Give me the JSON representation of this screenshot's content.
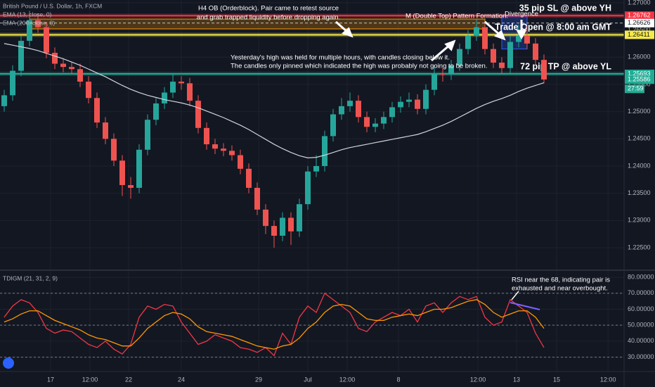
{
  "chart_data": [
    {
      "type": "candlestick",
      "legend": [
        "British Pound / U.S. Dollar, 1h, FXCM",
        "EMA (13, close, 0)",
        "EMA (200, close, 0)"
      ],
      "xlim": [
        -0.5,
        73.5
      ],
      "xticks": [
        {
          "value": 5.5,
          "label": "17"
        },
        {
          "value": 10.17,
          "label": "12:00"
        },
        {
          "value": 14.75,
          "label": "22"
        },
        {
          "value": 21,
          "label": "24"
        },
        {
          "value": 30.17,
          "label": "29"
        },
        {
          "value": 36,
          "label": "Jul"
        },
        {
          "value": 40.67,
          "label": "12:00"
        },
        {
          "value": 46.75,
          "label": "8"
        },
        {
          "value": 56.17,
          "label": "12:00"
        },
        {
          "value": 60.75,
          "label": "13"
        },
        {
          "value": 65.5,
          "label": "15"
        },
        {
          "value": 71.6,
          "label": "12:00"
        }
      ],
      "ylim": [
        1.221,
        1.2705
      ],
      "yticks": [
        {
          "value": 1.225,
          "label": "1.22500"
        },
        {
          "value": 1.23,
          "label": "1.23000"
        },
        {
          "value": 1.235,
          "label": "1.23500"
        },
        {
          "value": 1.24,
          "label": "1.24000"
        },
        {
          "value": 1.245,
          "label": "1.24500"
        },
        {
          "value": 1.25,
          "label": "1.25000"
        },
        {
          "value": 1.255,
          "label": "1.25500"
        },
        {
          "value": 1.26,
          "label": "1.26000"
        },
        {
          "value": 1.265,
          "label": "1.26500"
        },
        {
          "value": 1.27,
          "label": "1.27000"
        }
      ],
      "grid": true,
      "up_color": "#26a69a",
      "down_color": "#ef5350",
      "open": [
        1.251,
        1.253,
        1.2575,
        1.263,
        1.2668,
        1.2655,
        1.2608,
        1.2588,
        1.2582,
        1.2578,
        1.2555,
        1.2525,
        1.248,
        1.245,
        1.241,
        1.2365,
        1.236,
        1.243,
        1.2485,
        1.2515,
        1.2535,
        1.2555,
        1.2552,
        1.252,
        1.247,
        1.244,
        1.2432,
        1.2428,
        1.242,
        1.2395,
        1.236,
        1.232,
        1.229,
        1.2272,
        1.2305,
        1.228,
        1.233,
        1.239,
        1.24,
        1.2455,
        1.2495,
        1.251,
        1.252,
        1.249,
        1.2472,
        1.2478,
        1.249,
        1.2508,
        1.2518,
        1.2522,
        1.2505,
        1.254,
        1.257,
        1.2568,
        1.2585,
        1.2615,
        1.264,
        1.2655,
        1.2615,
        1.259,
        1.258,
        1.2628,
        1.264,
        1.2625,
        1.2595
      ],
      "high": [
        1.254,
        1.2585,
        1.264,
        1.2685,
        1.268,
        1.2665,
        1.2618,
        1.2598,
        1.2592,
        1.2588,
        1.2565,
        1.2535,
        1.249,
        1.246,
        1.242,
        1.238,
        1.244,
        1.2495,
        1.2525,
        1.2545,
        1.257,
        1.2565,
        1.2562,
        1.253,
        1.248,
        1.245,
        1.2442,
        1.2438,
        1.243,
        1.2405,
        1.237,
        1.233,
        1.23,
        1.2315,
        1.2315,
        1.234,
        1.24,
        1.242,
        1.2465,
        1.2505,
        1.2525,
        1.2535,
        1.253,
        1.25,
        1.2488,
        1.25,
        1.2518,
        1.2528,
        1.2535,
        1.2532,
        1.255,
        1.2585,
        1.258,
        1.2595,
        1.2625,
        1.265,
        1.267,
        1.2665,
        1.2625,
        1.26,
        1.264,
        1.266,
        1.2658,
        1.2635,
        1.2605
      ],
      "low": [
        1.25,
        1.252,
        1.2565,
        1.262,
        1.2645,
        1.2598,
        1.2578,
        1.2572,
        1.2568,
        1.2545,
        1.2515,
        1.247,
        1.244,
        1.24,
        1.2345,
        1.234,
        1.235,
        1.242,
        1.2475,
        1.2505,
        1.2525,
        1.254,
        1.251,
        1.246,
        1.243,
        1.2422,
        1.2418,
        1.241,
        1.2385,
        1.235,
        1.231,
        1.2275,
        1.225,
        1.2262,
        1.2255,
        1.227,
        1.232,
        1.238,
        1.239,
        1.2445,
        1.2485,
        1.25,
        1.248,
        1.2462,
        1.2462,
        1.2468,
        1.248,
        1.2498,
        1.2508,
        1.2495,
        1.2495,
        1.253,
        1.2555,
        1.2558,
        1.2575,
        1.2605,
        1.263,
        1.2605,
        1.258,
        1.257,
        1.257,
        1.2618,
        1.2615,
        1.2585,
        1.2552
      ],
      "close": [
        1.253,
        1.2575,
        1.263,
        1.2668,
        1.2655,
        1.2608,
        1.2588,
        1.2582,
        1.2578,
        1.2555,
        1.2525,
        1.248,
        1.245,
        1.241,
        1.2365,
        1.236,
        1.243,
        1.2485,
        1.2515,
        1.2535,
        1.2555,
        1.2552,
        1.252,
        1.247,
        1.244,
        1.2432,
        1.2428,
        1.242,
        1.2395,
        1.236,
        1.232,
        1.229,
        1.2272,
        1.2305,
        1.228,
        1.233,
        1.239,
        1.24,
        1.2455,
        1.2495,
        1.251,
        1.252,
        1.249,
        1.2472,
        1.2478,
        1.249,
        1.2508,
        1.2518,
        1.2522,
        1.2505,
        1.254,
        1.257,
        1.2568,
        1.2585,
        1.2615,
        1.264,
        1.2655,
        1.2615,
        1.259,
        1.258,
        1.2628,
        1.264,
        1.2625,
        1.2595,
        1.2559
      ],
      "series": [
        {
          "name": "EMA (200, close, 0)",
          "color": "#d1d4dc",
          "values": [
            1.2625,
            1.2622,
            1.2619,
            1.2616,
            1.2612,
            1.2607,
            1.2602,
            1.2597,
            1.2591,
            1.2585,
            1.2578,
            1.2571,
            1.2564,
            1.2556,
            1.2548,
            1.2541,
            1.2535,
            1.253,
            1.2526,
            1.2522,
            1.2519,
            1.2516,
            1.2512,
            1.2507,
            1.2501,
            1.2495,
            1.2489,
            1.2482,
            1.2475,
            1.2467,
            1.2458,
            1.2449,
            1.244,
            1.2432,
            1.2425,
            1.2419,
            1.2415,
            1.2416,
            1.242,
            1.2425,
            1.243,
            1.2434,
            1.2437,
            1.244,
            1.2443,
            1.2446,
            1.2449,
            1.2452,
            1.2455,
            1.2458,
            1.2463,
            1.2469,
            1.2475,
            1.2482,
            1.249,
            1.2498,
            1.2506,
            1.2513,
            1.2519,
            1.2524,
            1.253,
            1.2537,
            1.2543,
            1.2548,
            1.2553
          ]
        }
      ],
      "zones": [
        {
          "ylim": [
            1.2652,
            1.267
          ],
          "xlim": [
            3,
            57
          ],
          "color": "#ff9800"
        },
        {
          "ylim": [
            1.2615,
            1.2675
          ],
          "xlim": [
            59,
            62
          ],
          "color": "#2962ff"
        }
      ],
      "levels": [
        {
          "value": 1.26762,
          "color": "#f23645",
          "text": "35 pip SL @ above YH"
        },
        {
          "value": 1.26411,
          "color": "#f5e94b",
          "text": "Trade Open @ 8:00 am GMT"
        },
        {
          "value": 1.25693,
          "color": "#22ab94",
          "text": "72 pip TP @ above YL"
        }
      ],
      "price_labels": [
        {
          "value": 1.26626,
          "color": "#ffffff"
        },
        {
          "value": 1.25586,
          "color": "#22ab94",
          "countdown": "27:59"
        }
      ],
      "annotations": {
        "ob": [
          "H4 OB (Orderblock). Pair came to retest source",
          "and grab trapped liquidity before dropping again."
        ],
        "m_top": "M (Double Top) Pattern Formation.",
        "divergence": "Divergence",
        "yh": [
          "Yesterday's high was held for multiple hours, with candles closing below it.",
          "The candles only pinned which indicated the high was probably not going to be broken."
        ]
      }
    },
    {
      "type": "line",
      "legend": "TDIGM (21, 31, 2, 9)",
      "xlim": [
        -0.5,
        73.5
      ],
      "ylim": [
        21,
        84
      ],
      "yticks": [
        {
          "value": 30,
          "label": "30.00000"
        },
        {
          "value": 40,
          "label": "40.00000"
        },
        {
          "value": 50,
          "label": "50.00000"
        },
        {
          "value": 60,
          "label": "60.00000"
        },
        {
          "value": 70,
          "label": "70.00000"
        },
        {
          "value": 80,
          "label": "80.00000"
        }
      ],
      "levels": [
        70,
        50,
        30
      ],
      "annotation": [
        "RSI near the 68, indicating pair is",
        "exhausted and near overbought."
      ],
      "series": [
        {
          "color": "#f23645",
          "values": [
            55,
            62,
            66,
            64,
            58,
            48,
            45,
            47,
            46,
            42,
            38,
            36,
            40,
            35,
            32,
            38,
            55,
            62,
            60,
            63,
            62,
            52,
            45,
            38,
            40,
            44,
            42,
            40,
            36,
            35,
            33,
            36,
            31,
            45,
            38,
            55,
            62,
            58,
            70,
            66,
            62,
            58,
            48,
            46,
            52,
            55,
            58,
            56,
            60,
            52,
            62,
            64,
            58,
            64,
            68,
            66,
            68,
            55,
            50,
            52,
            66,
            62,
            58,
            45,
            36
          ]
        },
        {
          "color": "#ff9800",
          "values": [
            52,
            54,
            57,
            59,
            59,
            56,
            53,
            51,
            49,
            47,
            44,
            42,
            41,
            39,
            37,
            37,
            42,
            48,
            52,
            56,
            58,
            57,
            54,
            49,
            46,
            45,
            44,
            43,
            41,
            39,
            37,
            36,
            35,
            37,
            38,
            42,
            48,
            52,
            58,
            62,
            63,
            62,
            58,
            54,
            53,
            53,
            55,
            56,
            57,
            56,
            58,
            60,
            60,
            61,
            63,
            65,
            66,
            63,
            58,
            55,
            57,
            59,
            59,
            55,
            48
          ]
        }
      ]
    }
  ]
}
